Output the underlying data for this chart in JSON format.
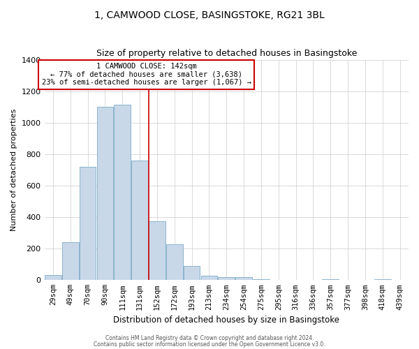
{
  "title1": "1, CAMWOOD CLOSE, BASINGSTOKE, RG21 3BL",
  "title2": "Size of property relative to detached houses in Basingstoke",
  "xlabel": "Distribution of detached houses by size in Basingstoke",
  "ylabel": "Number of detached properties",
  "bar_labels": [
    "29sqm",
    "49sqm",
    "70sqm",
    "90sqm",
    "111sqm",
    "131sqm",
    "152sqm",
    "172sqm",
    "193sqm",
    "213sqm",
    "234sqm",
    "254sqm",
    "275sqm",
    "295sqm",
    "316sqm",
    "336sqm",
    "357sqm",
    "377sqm",
    "398sqm",
    "418sqm",
    "439sqm"
  ],
  "bar_values": [
    32,
    240,
    720,
    1100,
    1115,
    760,
    375,
    228,
    88,
    28,
    18,
    20,
    8,
    0,
    0,
    0,
    5,
    0,
    0,
    4,
    0
  ],
  "bar_color": "#c8d8e8",
  "bar_edge_color": "#8ab4cc",
  "property_line_x": 5.5,
  "property_sqm": 142,
  "pct_smaller": 77,
  "count_smaller": 3638,
  "pct_larger_semi": 23,
  "count_larger_semi": 1067,
  "ylim": [
    0,
    1400
  ],
  "annotation_box_color": "#cc0000",
  "footer1": "Contains HM Land Registry data © Crown copyright and database right 2024.",
  "footer2": "Contains public sector information licensed under the Open Government Licence v3.0."
}
